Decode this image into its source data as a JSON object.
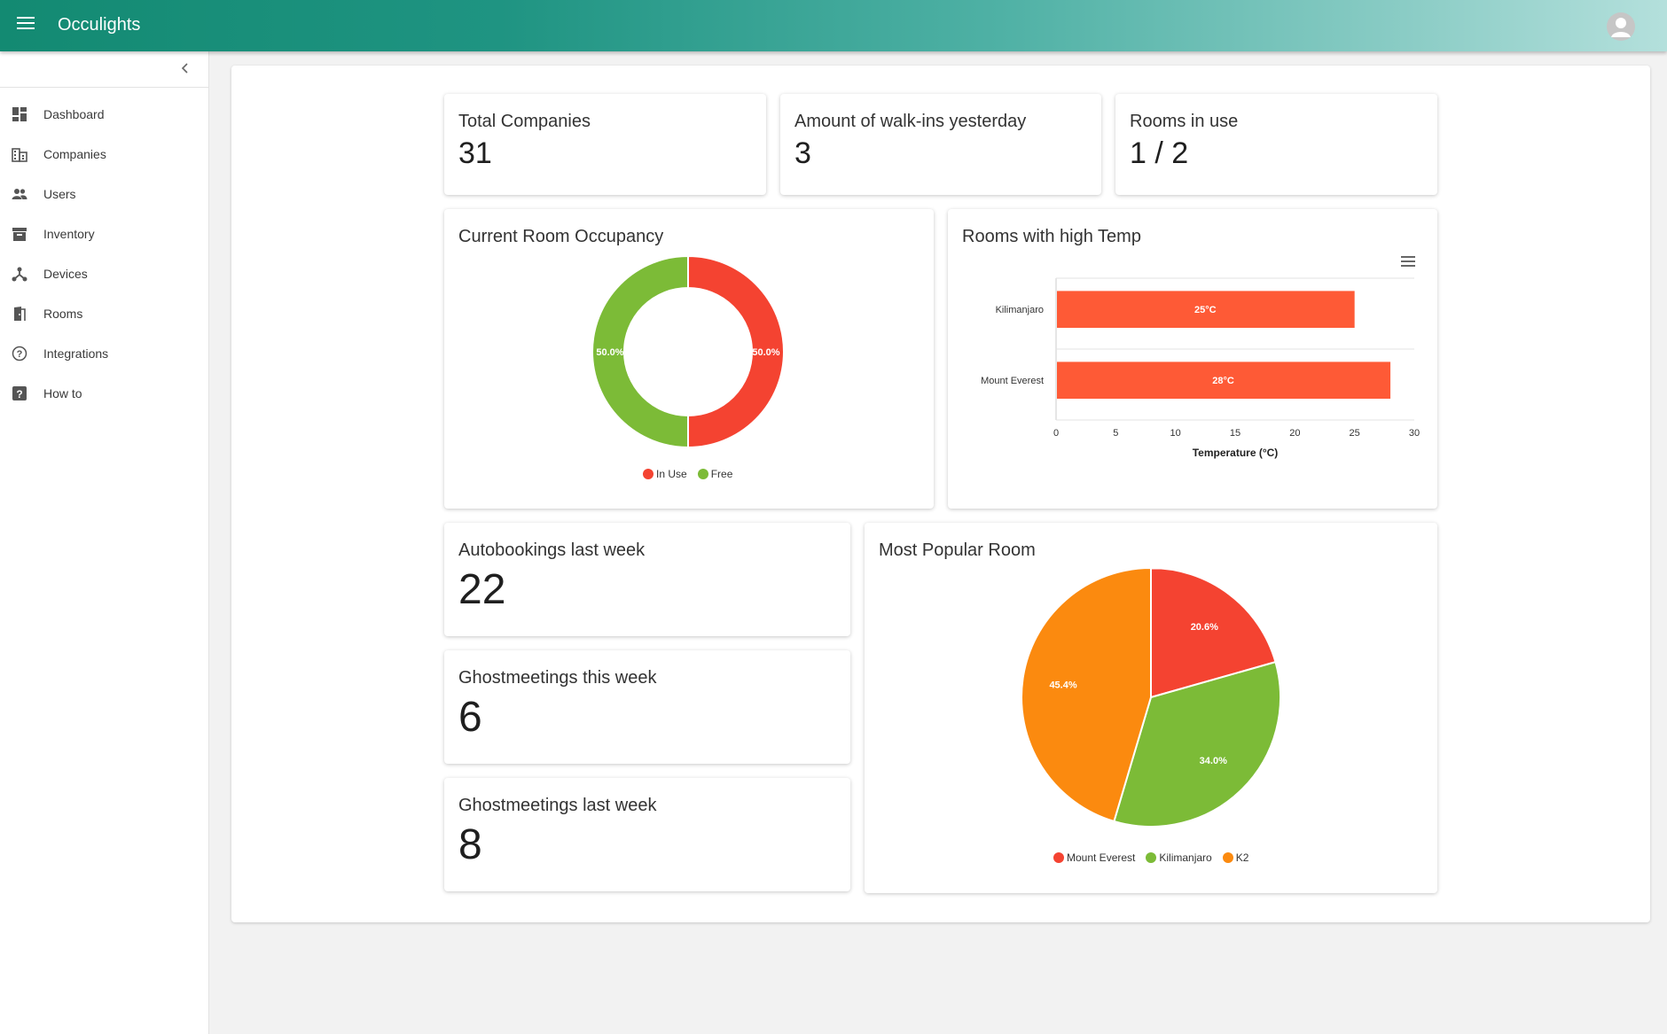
{
  "app": {
    "title": "Occulights"
  },
  "sidebar": {
    "items": [
      {
        "label": "Dashboard",
        "icon": "dashboard-icon"
      },
      {
        "label": "Companies",
        "icon": "building-icon"
      },
      {
        "label": "Users",
        "icon": "people-icon"
      },
      {
        "label": "Inventory",
        "icon": "archive-icon"
      },
      {
        "label": "Devices",
        "icon": "hub-icon"
      },
      {
        "label": "Rooms",
        "icon": "door-icon"
      },
      {
        "label": "Integrations",
        "icon": "help-circle-icon"
      },
      {
        "label": "How to",
        "icon": "help-box-icon"
      }
    ]
  },
  "stats": {
    "total_companies": {
      "title": "Total Companies",
      "value": "31"
    },
    "walkins": {
      "title": "Amount of walk-ins yesterday",
      "value": "3"
    },
    "rooms_in_use": {
      "title": "Rooms in use",
      "value": "1 / 2"
    },
    "autobookings": {
      "title": "Autobookings last week",
      "value": "22"
    },
    "ghost_this_week": {
      "title": "Ghostmeetings this week",
      "value": "6"
    },
    "ghost_last_week": {
      "title": "Ghostmeetings last week",
      "value": "8"
    }
  },
  "occupancy": {
    "title": "Current Room Occupancy",
    "legend": [
      {
        "label": "In Use",
        "color": "#f44331"
      },
      {
        "label": "Free",
        "color": "#7cbb37"
      }
    ]
  },
  "high_temp": {
    "title": "Rooms with high Temp"
  },
  "popular_room": {
    "title": "Most Popular Room",
    "legend": [
      {
        "label": "Mount Everest",
        "color": "#f44331"
      },
      {
        "label": "Kilimanjaro",
        "color": "#7cbb37"
      },
      {
        "label": "K2",
        "color": "#fb8a0f"
      }
    ]
  },
  "chart_data": [
    {
      "type": "pie",
      "variant": "donut",
      "title": "Current Room Occupancy",
      "categories": [
        "In Use",
        "Free"
      ],
      "values": [
        50.0,
        50.0
      ],
      "labels": [
        "50.0%",
        "50.0%"
      ],
      "colors": [
        "#f44331",
        "#7cbb37"
      ],
      "legend": "bottom"
    },
    {
      "type": "bar",
      "orientation": "horizontal",
      "title": "Rooms with high Temp",
      "categories": [
        "Kilimanjaro",
        "Mount Everest"
      ],
      "values": [
        25,
        28
      ],
      "labels": [
        "25°C",
        "28°C"
      ],
      "xlabel": "Temperature (°C)",
      "xlim": [
        0,
        30
      ],
      "xticks": [
        0,
        5,
        10,
        15,
        20,
        25,
        30
      ],
      "color": "#fe5a36"
    },
    {
      "type": "pie",
      "title": "Most Popular Room",
      "categories": [
        "Mount Everest",
        "Kilimanjaro",
        "K2"
      ],
      "values": [
        20.6,
        34.0,
        45.4
      ],
      "labels": [
        "20.6%",
        "34.0%",
        "45.4%"
      ],
      "colors": [
        "#f44331",
        "#7cbb37",
        "#fb8a0f"
      ],
      "legend": "bottom"
    }
  ]
}
